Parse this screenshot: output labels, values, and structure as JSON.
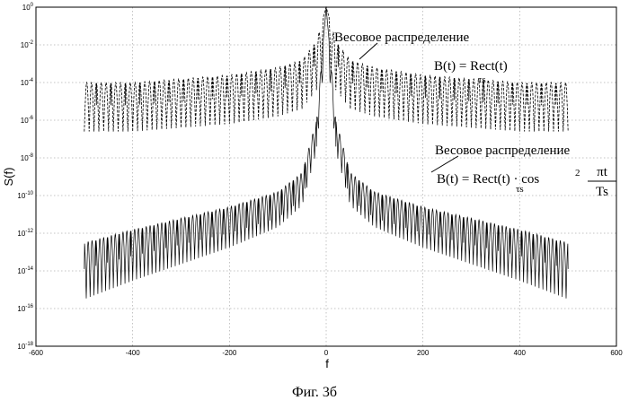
{
  "chart_data": {
    "type": "line",
    "xlabel": "f",
    "ylabel": "S(f)",
    "xlim": [
      -600,
      600
    ],
    "ylim_exponent": [
      -18,
      0
    ],
    "log_base": 10,
    "y_scale": "log",
    "grid": "dashed",
    "x_ticks": [
      "-600",
      "-400",
      "-200",
      "0",
      "200",
      "400",
      "600"
    ],
    "x_tick_values": [
      -600,
      -400,
      -200,
      0,
      200,
      400,
      600
    ],
    "y_tick_exponents": [
      "0",
      "-2",
      "-4",
      "-6",
      "-8",
      "-10",
      "-12",
      "-14",
      "-16",
      "-18"
    ],
    "series": [
      {
        "style": "dashed",
        "x": [
          -500,
          -400,
          -300,
          -200,
          -100,
          -50,
          -20,
          0,
          20,
          50,
          100,
          200,
          300,
          400,
          500
        ],
        "y_exp": [
          -4,
          -4,
          -3.8,
          -3.6,
          -3.2,
          -2.8,
          -1.8,
          0,
          -1.8,
          -2.8,
          -3.2,
          -3.6,
          -3.8,
          -4,
          -4
        ]
      },
      {
        "style": "solid",
        "x": [
          -500,
          -400,
          -300,
          -200,
          -100,
          -50,
          -20,
          0,
          20,
          50,
          100,
          200,
          300,
          400,
          500
        ],
        "y_exp": [
          -12.5,
          -11.8,
          -11.2,
          -10.6,
          -9.8,
          -8.8,
          -6,
          0,
          -6,
          -8.8,
          -9.8,
          -10.6,
          -11.2,
          -11.8,
          -12.5
        ]
      }
    ],
    "annotations": [
      {
        "title": "Весовое распределение",
        "formula": "B(t) = Rect(t)",
        "subscript": "τs"
      },
      {
        "title": "Весовое распределение",
        "formula": "B(t) = Rect(t) · cos",
        "power": "2",
        "numerator": "πt",
        "denominator": "Ts",
        "subscript": "τs"
      }
    ]
  },
  "caption": "Фиг. 3б"
}
